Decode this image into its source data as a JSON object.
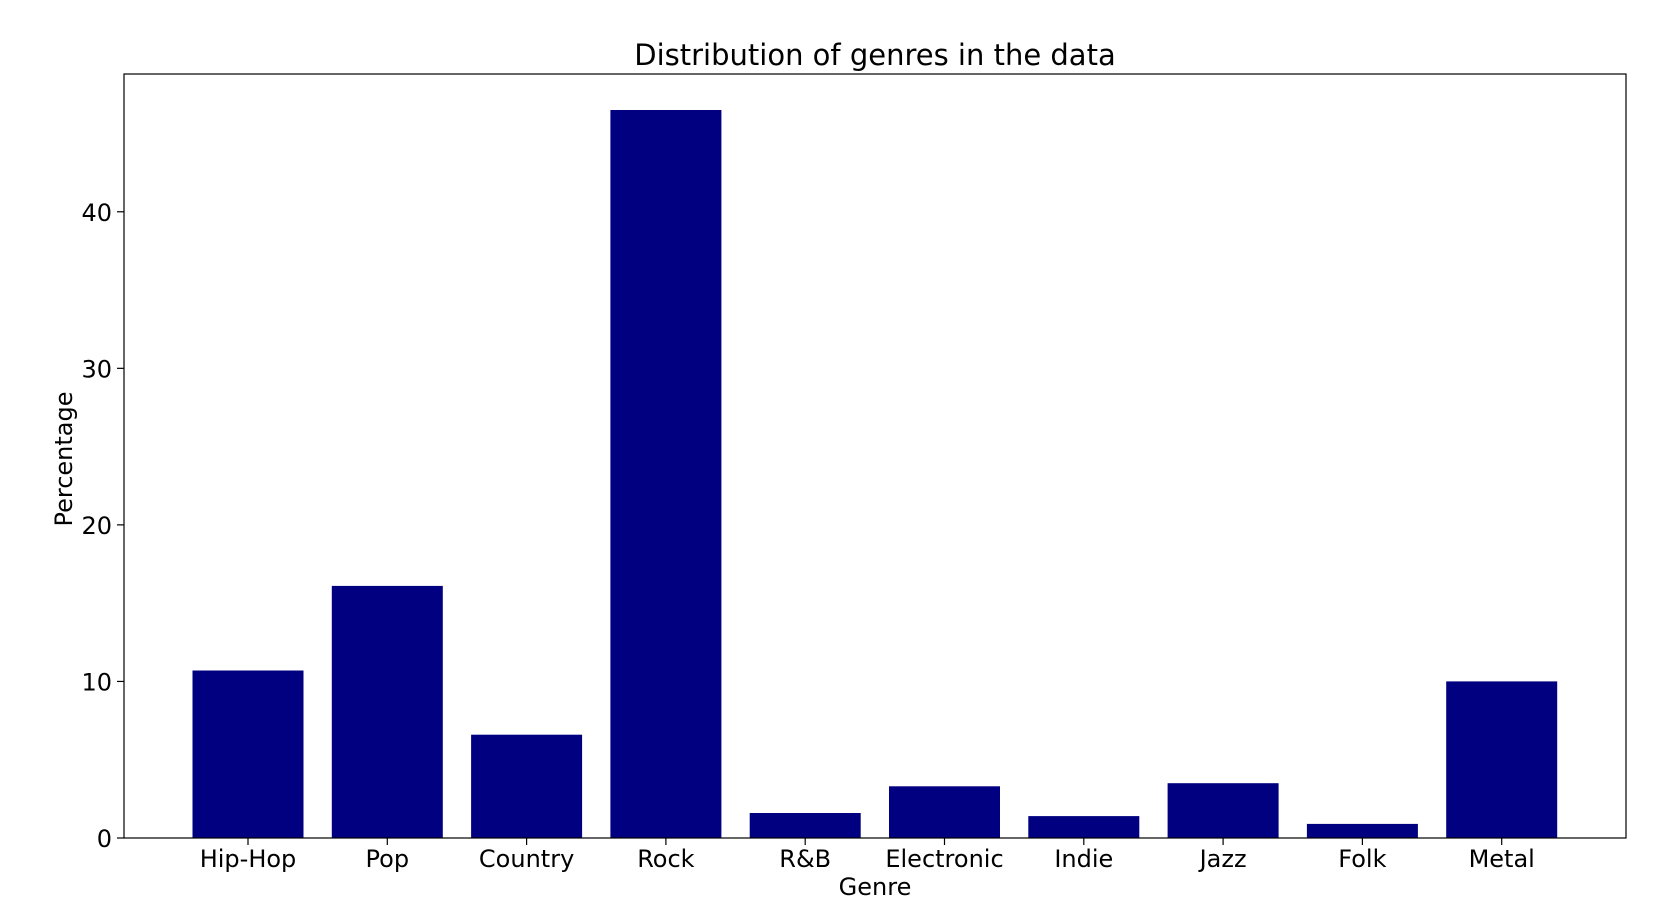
{
  "chart_data": {
    "type": "bar",
    "title": "Distribution of genres in the data",
    "xlabel": "Genre",
    "ylabel": "Percentage",
    "categories": [
      "Hip-Hop",
      "Pop",
      "Country",
      "Rock",
      "R&B",
      "Electronic",
      "Indie",
      "Jazz",
      "Folk",
      "Metal"
    ],
    "values": [
      10.7,
      16.1,
      6.6,
      46.5,
      1.6,
      3.3,
      1.4,
      3.5,
      0.9,
      10.0
    ],
    "yticks": [
      0,
      10,
      20,
      30,
      40
    ],
    "ytick_labels": [
      "0",
      "10",
      "20",
      "30",
      "40"
    ],
    "ylim": [
      0,
      48.8
    ],
    "grid": false,
    "bar_color": "#000080"
  }
}
